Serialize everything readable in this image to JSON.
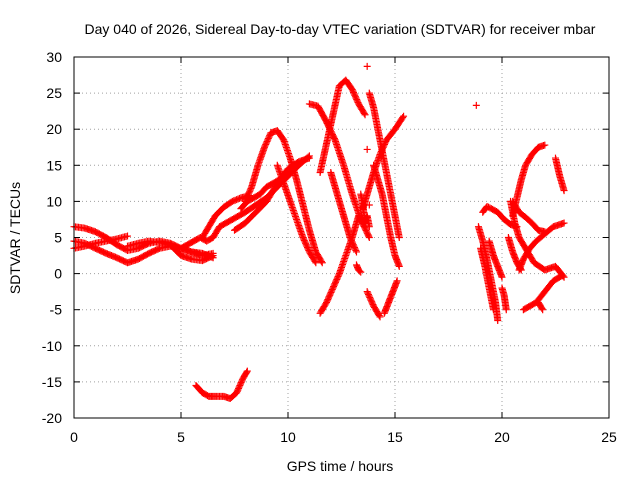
{
  "chart_data": {
    "type": "scatter",
    "title": "Day 040 of 2026, Sidereal Day-to-day VTEC variation (SDTVAR) for receiver mbar",
    "xlabel": "GPS time / hours",
    "ylabel": "SDTVAR / TECUs",
    "xlim": [
      0,
      25
    ],
    "ylim": [
      -20,
      30
    ],
    "xticks": [
      0,
      5,
      10,
      15,
      20,
      25
    ],
    "yticks": [
      -20,
      -15,
      -10,
      -5,
      0,
      5,
      10,
      15,
      20,
      25,
      30
    ],
    "xtick_labels": [
      "0",
      "5",
      "10",
      "15",
      "20",
      "25"
    ],
    "ytick_labels": [
      "-20",
      "-15",
      "-10",
      "-5",
      "0",
      "5",
      "10",
      "15",
      "20",
      "25",
      "30"
    ],
    "grid": true,
    "legend": "none",
    "marker": "plus",
    "color": "#ff0000",
    "series": [
      {
        "points": [
          [
            0,
            6.5
          ],
          [
            0.5,
            6.3
          ],
          [
            1,
            5.8
          ],
          [
            1.5,
            5
          ],
          [
            2,
            4
          ],
          [
            2.5,
            3.2
          ],
          [
            3,
            3.5
          ],
          [
            3.5,
            4.2
          ],
          [
            4,
            4.5
          ],
          [
            4.5,
            4.2
          ],
          [
            5,
            3.5
          ],
          [
            5.5,
            3
          ],
          [
            6,
            2.5
          ],
          [
            6.5,
            2.8
          ]
        ]
      },
      {
        "points": [
          [
            0,
            3.5
          ],
          [
            0.5,
            3.8
          ],
          [
            1,
            4.2
          ],
          [
            1.5,
            4.5
          ],
          [
            2,
            4.8
          ],
          [
            2.5,
            5.2
          ]
        ]
      },
      {
        "points": [
          [
            0,
            4.5
          ],
          [
            0.5,
            4.2
          ],
          [
            1,
            3.5
          ],
          [
            1.5,
            2.8
          ],
          [
            2,
            2.2
          ],
          [
            2.5,
            1.5
          ],
          [
            3,
            2
          ],
          [
            3.5,
            2.8
          ],
          [
            4,
            3.5
          ],
          [
            4.5,
            3.8
          ],
          [
            5,
            3.5
          ],
          [
            5.5,
            3
          ],
          [
            6,
            2.8
          ],
          [
            6.5,
            2.2
          ]
        ]
      },
      {
        "points": [
          [
            2.5,
            3.8
          ],
          [
            3,
            4.2
          ],
          [
            3.5,
            4.5
          ],
          [
            4,
            4.3
          ],
          [
            4.5,
            4
          ],
          [
            5,
            2.5
          ],
          [
            5.5,
            2
          ],
          [
            6,
            1.8
          ],
          [
            6.5,
            2.5
          ]
        ]
      },
      {
        "points": [
          [
            5,
            3.5
          ],
          [
            5.3,
            4
          ],
          [
            5.6,
            4.5
          ],
          [
            5.9,
            5
          ],
          [
            6.2,
            4.5
          ],
          [
            6.5,
            5
          ],
          [
            6.8,
            6.5
          ],
          [
            7.1,
            7
          ],
          [
            7.4,
            7.5
          ],
          [
            7.7,
            8
          ],
          [
            8,
            8.5
          ],
          [
            8.5,
            9.5
          ],
          [
            9,
            10.5
          ],
          [
            9.5,
            12
          ],
          [
            10,
            13.5
          ],
          [
            10.5,
            15
          ],
          [
            11,
            16.3
          ]
        ]
      },
      {
        "points": [
          [
            6,
            5
          ],
          [
            6.3,
            6.5
          ],
          [
            6.6,
            8
          ],
          [
            7,
            9.2
          ],
          [
            7.4,
            10
          ],
          [
            7.8,
            10.5
          ],
          [
            8.2,
            10.8
          ]
        ]
      },
      {
        "points": [
          [
            7.5,
            6
          ],
          [
            8,
            7
          ],
          [
            8.5,
            8.5
          ],
          [
            9,
            10
          ],
          [
            9.3,
            11.5
          ],
          [
            9.6,
            13
          ],
          [
            10,
            14.5
          ],
          [
            10.5,
            15.5
          ],
          [
            11,
            16
          ]
        ]
      },
      {
        "points": [
          [
            7.8,
            9
          ],
          [
            8.1,
            10
          ],
          [
            8.4,
            10.5
          ],
          [
            8.7,
            11
          ],
          [
            9,
            12
          ],
          [
            9.3,
            12.5
          ],
          [
            9.6,
            13
          ],
          [
            9.9,
            14
          ]
        ]
      },
      {
        "points": [
          [
            8,
            10
          ],
          [
            8.3,
            12
          ],
          [
            8.6,
            15
          ],
          [
            8.9,
            17.5
          ],
          [
            9.2,
            19.5
          ],
          [
            9.5,
            19.8
          ],
          [
            9.8,
            18.5
          ],
          [
            10.1,
            16
          ],
          [
            10.4,
            13
          ],
          [
            10.7,
            9.5
          ],
          [
            11,
            6
          ],
          [
            11.3,
            3
          ],
          [
            11.6,
            1.5
          ]
        ]
      },
      {
        "points": [
          [
            9.5,
            15
          ],
          [
            9.8,
            12.5
          ],
          [
            10.1,
            10
          ],
          [
            10.4,
            7.5
          ],
          [
            10.7,
            5
          ],
          [
            11,
            3
          ],
          [
            11.3,
            1.5
          ]
        ]
      },
      {
        "points": [
          [
            11,
            23.5
          ],
          [
            11.4,
            23.2
          ],
          [
            11.8,
            21
          ],
          [
            12.2,
            18.5
          ],
          [
            12.6,
            15
          ],
          [
            13,
            11
          ],
          [
            13.4,
            7.5
          ],
          [
            13.8,
            5
          ]
        ]
      },
      {
        "points": [
          [
            11.5,
            14
          ],
          [
            11.8,
            18
          ],
          [
            12.1,
            22
          ],
          [
            12.4,
            26
          ],
          [
            12.7,
            26.8
          ],
          [
            13,
            25.5
          ],
          [
            13.3,
            23.5
          ],
          [
            13.6,
            22
          ]
        ]
      },
      {
        "points": [
          [
            11.5,
            -5.5
          ],
          [
            11.8,
            -4
          ],
          [
            12.1,
            -2
          ],
          [
            12.4,
            0
          ],
          [
            12.7,
            2.5
          ],
          [
            13,
            5
          ],
          [
            13.3,
            8
          ]
        ]
      },
      {
        "points": [
          [
            12,
            14
          ],
          [
            12.3,
            11
          ],
          [
            12.6,
            8
          ],
          [
            12.9,
            5
          ],
          [
            13.2,
            3
          ]
        ]
      },
      {
        "points": [
          [
            13.5,
            9
          ],
          [
            13.7,
            11
          ],
          [
            14,
            14
          ],
          [
            14.3,
            16.5
          ],
          [
            14.6,
            18.5
          ],
          [
            15,
            20
          ],
          [
            15.4,
            21.8
          ]
        ]
      },
      {
        "points": [
          [
            13.8,
            25
          ],
          [
            14,
            23
          ],
          [
            14.2,
            20
          ],
          [
            14.4,
            17
          ],
          [
            14.6,
            14
          ],
          [
            14.8,
            11
          ],
          [
            15,
            8
          ],
          [
            15.2,
            5
          ]
        ]
      },
      {
        "points": [
          [
            14,
            15
          ],
          [
            14.2,
            13
          ],
          [
            14.4,
            11
          ],
          [
            14.6,
            8
          ],
          [
            14.8,
            5
          ],
          [
            15,
            2.5
          ],
          [
            15.2,
            1
          ]
        ]
      },
      {
        "points": [
          [
            13.4,
            11
          ],
          [
            13.5,
            9.5
          ],
          [
            13.6,
            7
          ],
          [
            13.7,
            8
          ],
          [
            13.8,
            6.5
          ]
        ]
      },
      {
        "points": [
          [
            13.2,
            1.2
          ],
          [
            13.3,
            0.5
          ],
          [
            13.4,
            0.2
          ]
        ]
      },
      {
        "points": [
          [
            13.7,
            -2.5
          ],
          [
            14,
            -4.5
          ],
          [
            14.3,
            -6
          ]
        ]
      },
      {
        "points": [
          [
            14.5,
            -5.5
          ],
          [
            14.7,
            -4
          ],
          [
            14.9,
            -2.5
          ],
          [
            15.1,
            -1
          ]
        ]
      },
      {
        "points": [
          [
            13.7,
            28.7
          ]
        ]
      },
      {
        "points": [
          [
            13.8,
            9.5
          ]
        ]
      },
      {
        "points": [
          [
            13.7,
            17.2
          ]
        ]
      },
      {
        "points": [
          [
            18.8,
            23.3
          ]
        ]
      },
      {
        "points": [
          [
            18.9,
            6.5
          ],
          [
            19.1,
            4.5
          ],
          [
            19.3,
            2
          ],
          [
            19.5,
            -1
          ],
          [
            19.7,
            -4
          ],
          [
            19.8,
            -6.5
          ]
        ]
      },
      {
        "points": [
          [
            19,
            3.5
          ],
          [
            19.2,
            1
          ],
          [
            19.4,
            -2
          ],
          [
            19.6,
            -5
          ]
        ]
      },
      {
        "points": [
          [
            19.1,
            8.5
          ],
          [
            19.3,
            9.3
          ],
          [
            19.5,
            9
          ],
          [
            19.8,
            8.5
          ],
          [
            20.1,
            7.5
          ],
          [
            20.4,
            6.8
          ],
          [
            20.7,
            6.5
          ]
        ]
      },
      {
        "points": [
          [
            19.4,
            4.5
          ],
          [
            19.6,
            2.5
          ],
          [
            19.8,
            1
          ],
          [
            20,
            -0.5
          ]
        ]
      },
      {
        "points": [
          [
            20,
            -2
          ],
          [
            20.1,
            -3
          ],
          [
            20.2,
            -5
          ]
        ]
      },
      {
        "points": [
          [
            20.5,
            8
          ],
          [
            20.7,
            10.5
          ],
          [
            20.9,
            13
          ],
          [
            21.1,
            15
          ],
          [
            21.4,
            16.5
          ],
          [
            21.7,
            17.5
          ],
          [
            22,
            17.8
          ]
        ]
      },
      {
        "points": [
          [
            20.3,
            5
          ],
          [
            20.5,
            3
          ],
          [
            20.7,
            1.5
          ],
          [
            20.9,
            0.5
          ]
        ]
      },
      {
        "points": [
          [
            20.4,
            10
          ],
          [
            20.6,
            7
          ],
          [
            20.8,
            5
          ],
          [
            21.2,
            3
          ],
          [
            21.5,
            1.5
          ],
          [
            22,
            0.5
          ],
          [
            22.5,
            1
          ],
          [
            22.9,
            -0.5
          ]
        ]
      },
      {
        "points": [
          [
            20.8,
            0.5
          ],
          [
            21,
            2
          ],
          [
            21.3,
            3.5
          ],
          [
            21.6,
            4.5
          ],
          [
            22,
            5.5
          ],
          [
            22.4,
            6.5
          ],
          [
            22.9,
            7
          ]
        ]
      },
      {
        "points": [
          [
            20.5,
            10
          ],
          [
            20.8,
            8.5
          ],
          [
            21.1,
            7.8
          ],
          [
            21.4,
            7
          ],
          [
            21.7,
            6
          ],
          [
            22,
            5.8
          ]
        ]
      },
      {
        "points": [
          [
            21,
            -5
          ],
          [
            21.3,
            -4.5
          ],
          [
            21.6,
            -4
          ],
          [
            22,
            -2.5
          ],
          [
            22.4,
            -1
          ],
          [
            22.8,
            -0.3
          ]
        ]
      },
      {
        "points": [
          [
            22.5,
            16
          ],
          [
            22.7,
            13.5
          ],
          [
            22.9,
            11.5
          ]
        ]
      },
      {
        "points": [
          [
            21.7,
            -4
          ],
          [
            21.9,
            -5
          ]
        ]
      },
      {
        "points": [
          [
            5.7,
            -15.5
          ],
          [
            6,
            -16.5
          ],
          [
            6.3,
            -17
          ],
          [
            6.6,
            -17
          ],
          [
            7,
            -17
          ],
          [
            7.3,
            -17.3
          ],
          [
            7.6,
            -16.5
          ],
          [
            7.9,
            -14.5
          ],
          [
            8.1,
            -13.5
          ]
        ]
      }
    ]
  }
}
